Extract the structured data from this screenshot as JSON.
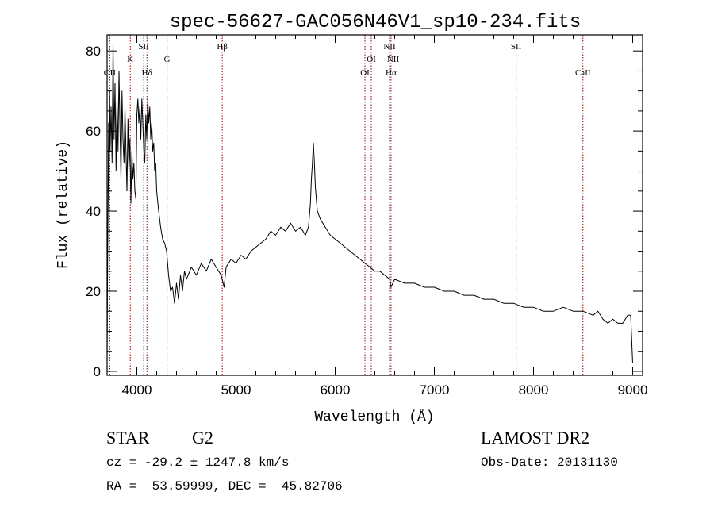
{
  "colors": {
    "spectrum": "#000000",
    "line_markers": "#8b0000",
    "axes": "#000000"
  },
  "chart_data": {
    "type": "line",
    "title": "spec-56627-GAC056N46V1_sp10-234.fits",
    "xlabel": "Wavelength (Å)",
    "ylabel": "Flux (relative)",
    "xlim": [
      3700,
      9100
    ],
    "ylim": [
      -1,
      84
    ],
    "x_ticks": [
      4000,
      5000,
      6000,
      7000,
      8000,
      9000
    ],
    "y_ticks": [
      0,
      20,
      40,
      60,
      80
    ],
    "grid": false,
    "series": [
      {
        "points": [
          [
            3700,
            2
          ],
          [
            3705,
            25
          ],
          [
            3710,
            45
          ],
          [
            3715,
            62
          ],
          [
            3720,
            40
          ],
          [
            3725,
            70
          ],
          [
            3730,
            55
          ],
          [
            3740,
            66
          ],
          [
            3750,
            52
          ],
          [
            3760,
            82
          ],
          [
            3770,
            58
          ],
          [
            3780,
            72
          ],
          [
            3790,
            50
          ],
          [
            3800,
            68
          ],
          [
            3810,
            55
          ],
          [
            3820,
            75
          ],
          [
            3830,
            60
          ],
          [
            3840,
            48
          ],
          [
            3850,
            70
          ],
          [
            3860,
            58
          ],
          [
            3870,
            52
          ],
          [
            3880,
            66
          ],
          [
            3890,
            55
          ],
          [
            3900,
            45
          ],
          [
            3910,
            63
          ],
          [
            3920,
            50
          ],
          [
            3930,
            58
          ],
          [
            3940,
            42
          ],
          [
            3950,
            55
          ],
          [
            3960,
            48
          ],
          [
            3970,
            52
          ],
          [
            3980,
            45
          ],
          [
            3990,
            43
          ],
          [
            4000,
            64
          ],
          [
            4010,
            68
          ],
          [
            4020,
            62
          ],
          [
            4030,
            66
          ],
          [
            4040,
            58
          ],
          [
            4050,
            68
          ],
          [
            4060,
            62
          ],
          [
            4070,
            55
          ],
          [
            4080,
            52
          ],
          [
            4090,
            64
          ],
          [
            4100,
            58
          ],
          [
            4110,
            68
          ],
          [
            4120,
            62
          ],
          [
            4130,
            66
          ],
          [
            4140,
            58
          ],
          [
            4150,
            62
          ],
          [
            4160,
            55
          ],
          [
            4170,
            57
          ],
          [
            4180,
            50
          ],
          [
            4190,
            52
          ],
          [
            4200,
            45
          ],
          [
            4220,
            40
          ],
          [
            4240,
            36
          ],
          [
            4260,
            33
          ],
          [
            4280,
            32
          ],
          [
            4300,
            30
          ],
          [
            4320,
            24
          ],
          [
            4340,
            20
          ],
          [
            4360,
            21
          ],
          [
            4380,
            17
          ],
          [
            4400,
            22
          ],
          [
            4420,
            18
          ],
          [
            4440,
            24
          ],
          [
            4460,
            20
          ],
          [
            4480,
            25
          ],
          [
            4500,
            23
          ],
          [
            4550,
            26
          ],
          [
            4600,
            24
          ],
          [
            4650,
            27
          ],
          [
            4700,
            25
          ],
          [
            4750,
            28
          ],
          [
            4800,
            26
          ],
          [
            4850,
            24
          ],
          [
            4880,
            21
          ],
          [
            4900,
            26
          ],
          [
            4950,
            28
          ],
          [
            5000,
            27
          ],
          [
            5050,
            29
          ],
          [
            5100,
            28
          ],
          [
            5150,
            30
          ],
          [
            5200,
            31
          ],
          [
            5250,
            32
          ],
          [
            5300,
            33
          ],
          [
            5350,
            35
          ],
          [
            5400,
            34
          ],
          [
            5450,
            36
          ],
          [
            5500,
            35
          ],
          [
            5550,
            37
          ],
          [
            5600,
            35
          ],
          [
            5650,
            36
          ],
          [
            5700,
            34
          ],
          [
            5730,
            36
          ],
          [
            5750,
            42
          ],
          [
            5760,
            48
          ],
          [
            5770,
            52
          ],
          [
            5780,
            57
          ],
          [
            5790,
            52
          ],
          [
            5800,
            46
          ],
          [
            5820,
            40
          ],
          [
            5850,
            38
          ],
          [
            5900,
            36
          ],
          [
            5950,
            34
          ],
          [
            6000,
            33
          ],
          [
            6050,
            32
          ],
          [
            6100,
            31
          ],
          [
            6150,
            30
          ],
          [
            6200,
            29
          ],
          [
            6250,
            28
          ],
          [
            6300,
            27
          ],
          [
            6350,
            26
          ],
          [
            6400,
            25
          ],
          [
            6450,
            25
          ],
          [
            6500,
            24
          ],
          [
            6550,
            23
          ],
          [
            6562,
            21
          ],
          [
            6600,
            23
          ],
          [
            6700,
            22
          ],
          [
            6800,
            22
          ],
          [
            6900,
            21
          ],
          [
            7000,
            21
          ],
          [
            7100,
            20
          ],
          [
            7200,
            20
          ],
          [
            7300,
            19
          ],
          [
            7400,
            19
          ],
          [
            7500,
            18
          ],
          [
            7600,
            18
          ],
          [
            7700,
            17
          ],
          [
            7800,
            17
          ],
          [
            7900,
            16
          ],
          [
            8000,
            16
          ],
          [
            8100,
            15
          ],
          [
            8200,
            15
          ],
          [
            8300,
            16
          ],
          [
            8400,
            15
          ],
          [
            8500,
            15
          ],
          [
            8600,
            14
          ],
          [
            8650,
            15
          ],
          [
            8700,
            13
          ],
          [
            8750,
            12
          ],
          [
            8800,
            13
          ],
          [
            8850,
            12
          ],
          [
            8900,
            12
          ],
          [
            8950,
            14
          ],
          [
            8980,
            14
          ],
          [
            9000,
            2
          ]
        ]
      }
    ],
    "line_markers": [
      {
        "label": "OII",
        "x": 3727,
        "row": 3
      },
      {
        "label": "K",
        "x": 3934,
        "row": 2
      },
      {
        "label": "SII",
        "x": 4069,
        "row": 1
      },
      {
        "label": "Hδ",
        "x": 4102,
        "row": 3
      },
      {
        "label": "G",
        "x": 4305,
        "row": 2
      },
      {
        "label": "Hβ",
        "x": 4861,
        "row": 1
      },
      {
        "label": "OI",
        "x": 6300,
        "row": 3
      },
      {
        "label": "OI",
        "x": 6364,
        "row": 2
      },
      {
        "label": "NII",
        "x": 6548,
        "row": 1
      },
      {
        "label": "Hα",
        "x": 6563,
        "row": 3
      },
      {
        "label": "NII",
        "x": 6584,
        "row": 2
      },
      {
        "label": "SII",
        "x": 7825,
        "row": 1
      },
      {
        "label": "CaII",
        "x": 8498,
        "row": 3
      }
    ]
  },
  "footer": {
    "object_class": "STAR",
    "subclass": "G2",
    "survey": "LAMOST DR2",
    "cz_text": "cz = -29.2 ± 1247.8 km/s",
    "obs_date_text": "Obs-Date: 20131130",
    "coords_text": "RA =  53.59999, DEC =  45.82706"
  }
}
